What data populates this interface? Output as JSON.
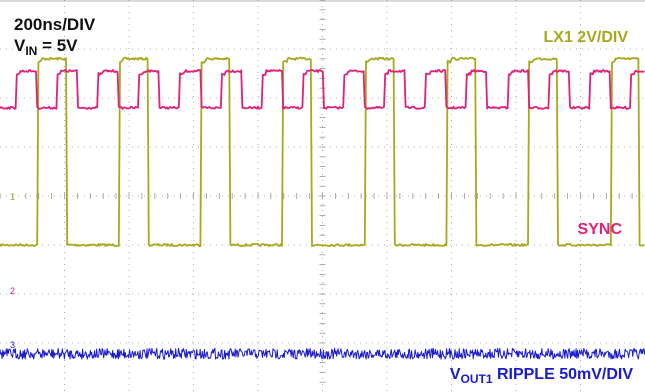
{
  "chart_data": {
    "type": "line",
    "title": "",
    "annotations": {
      "timebase": "200ns/DIV",
      "vin_main": "V",
      "vin_sub": "IN",
      "vin_rest": " = 5V"
    },
    "grid": true,
    "divisions": {
      "x": 10,
      "y": 8
    },
    "series": [
      {
        "name": "LX1 2V/DIV",
        "color": "#a8a81e",
        "marker": "1",
        "type": "square",
        "low_div": 5.0,
        "high_div": 1.2,
        "period_div": 1.27,
        "duty": 0.35,
        "phase_div": 0.58
      },
      {
        "name": "SYNC",
        "color": "#e0217a",
        "marker": "2",
        "type": "square",
        "low_div": 2.2,
        "high_div": 1.45,
        "period_div": 0.635,
        "duty": 0.5,
        "phase_div": 0.25
      },
      {
        "name": "RIPPLE 50mV/DIV",
        "name_prefix": "V",
        "name_sub": "OUT1",
        "color": "#1a1ad0",
        "marker": "3",
        "type": "noise",
        "level_div": 0.78,
        "amplitude_div": 0.11
      }
    ]
  }
}
